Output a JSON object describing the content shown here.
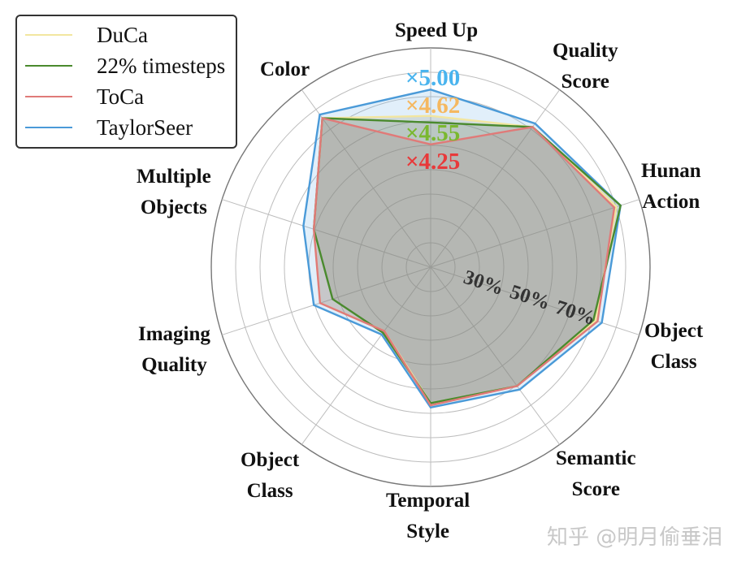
{
  "chart_data": {
    "type": "radar",
    "title": "",
    "axes": [
      "Speed Up",
      "Quality Score",
      "Hunan Action",
      "Object Class",
      "Semantic Score",
      "Temporal Style",
      "Object Class",
      "Imaging Quality",
      "Multiple Objects",
      "Color"
    ],
    "radial_ticks": [
      "30%",
      "50%",
      "70%"
    ],
    "rings": 9,
    "grid": true,
    "legend_position": "upper-left",
    "series": [
      {
        "name": "DuCa",
        "color": "#f2e6a0",
        "values": [
          0.69,
          0.79,
          0.89,
          0.79,
          0.67,
          0.62,
          0.36,
          0.53,
          0.56,
          0.84
        ]
      },
      {
        "name": "22% timesteps",
        "color": "#4a8a2e",
        "values": [
          0.66,
          0.79,
          0.91,
          0.78,
          0.67,
          0.62,
          0.37,
          0.47,
          0.56,
          0.84
        ]
      },
      {
        "name": "ToCa",
        "color": "#e07a78",
        "values": [
          0.56,
          0.79,
          0.88,
          0.8,
          0.67,
          0.63,
          0.36,
          0.53,
          0.56,
          0.84
        ]
      },
      {
        "name": "TaylorSeer",
        "color": "#4a9ad8",
        "values": [
          0.81,
          0.81,
          0.91,
          0.82,
          0.69,
          0.64,
          0.38,
          0.56,
          0.61,
          0.86
        ]
      }
    ],
    "speed_annotations": [
      {
        "text": "×5.00",
        "series": "TaylorSeer",
        "color": "#4ab4ee"
      },
      {
        "text": "×4.62",
        "series": "DuCa",
        "color": "#f5b860"
      },
      {
        "text": "×4.55",
        "series": "22% timesteps",
        "color": "#7ab830"
      },
      {
        "text": "×4.25",
        "series": "ToCa",
        "color": "#e8393a"
      }
    ]
  },
  "legend": {
    "items": [
      {
        "label": "DuCa",
        "color": "#f2e6a0"
      },
      {
        "label": "22% timesteps",
        "color": "#4a8a2e"
      },
      {
        "label": "ToCa",
        "color": "#e07a78"
      },
      {
        "label": "TaylorSeer",
        "color": "#4a9ad8"
      }
    ]
  },
  "labels": {
    "speed_up": "Speed Up",
    "quality_1": "Quality",
    "quality_2": "Score",
    "hunan_1": "Hunan",
    "hunan_2": "Action",
    "objclass_r_1": "Object",
    "objclass_r_2": "Class",
    "semantic_1": "Semantic",
    "semantic_2": "Score",
    "temporal_1": "Temporal",
    "temporal_2": "Style",
    "objclass_l_1": "Object",
    "objclass_l_2": "Class",
    "imaging_1": "Imaging",
    "imaging_2": "Quality",
    "multiple_1": "Multiple",
    "multiple_2": "Objects",
    "color": "Color"
  },
  "pct": {
    "p30": "30%",
    "p50": "50%",
    "p70": "70%"
  },
  "speed": {
    "s500": "×5.00",
    "s462": "×4.62",
    "s455": "×4.55",
    "s425": "×4.25"
  },
  "watermark": "知乎 @明月偷垂泪"
}
